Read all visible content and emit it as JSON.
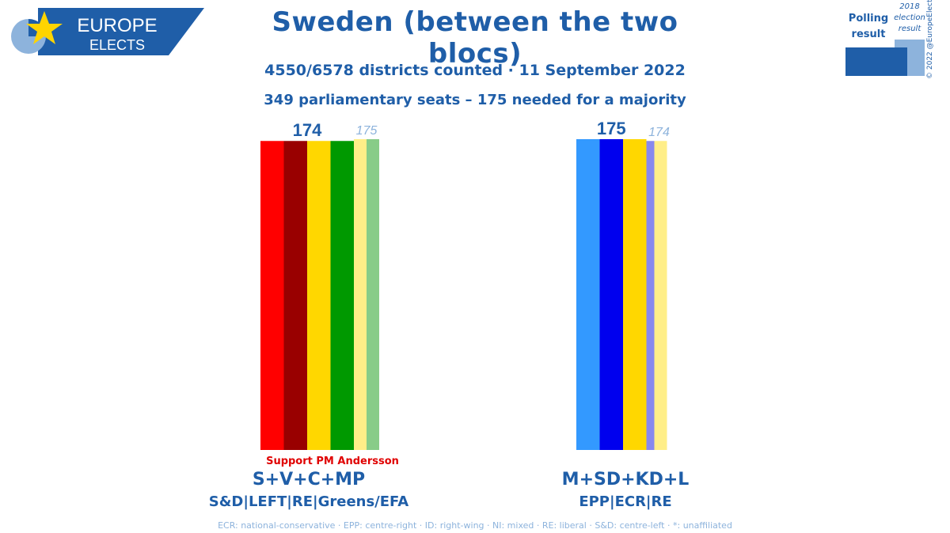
{
  "logo": {
    "line1": "EUROPE",
    "line2": "ELECTS"
  },
  "title": "Sweden (between the two blocs)",
  "subtitle1": "4550/6578 districts counted · 11 September 2022",
  "subtitle2": "349 parliamentary seats – 175 needed for a majority",
  "legend": {
    "polling_label": "Polling result",
    "election_label": "2018 election result",
    "polling_color": "#1f5ea8",
    "election_color": "#8db3dc"
  },
  "copyright": "© 2022 @EuropeElects",
  "support_note": "Support PM Andersson",
  "footnote": "ECR: national-conservative · EPP: centre-right · ID: right-wing · NI: mixed · RE: liberal · S&D: centre-left · *: unaffiliated",
  "chart_data": {
    "type": "bar",
    "ylim": [
      0,
      175
    ],
    "blocs": [
      {
        "name": "S+V+C+MP",
        "groups": "S&D|LEFT|RE|Greens/EFA",
        "polling_seats": 174,
        "election_2018_seats": 175,
        "polling_parties": [
          {
            "party": "S",
            "color": "#ff0000"
          },
          {
            "party": "V",
            "color": "#990000"
          },
          {
            "party": "C",
            "color": "#ffd700"
          },
          {
            "party": "MP",
            "color": "#009900"
          }
        ],
        "election_parties": [
          {
            "party": "C",
            "color": "#ffee88"
          },
          {
            "party": "MP",
            "color": "#88cc88"
          }
        ]
      },
      {
        "name": "M+SD+KD+L",
        "groups": "EPP|ECR|RE",
        "polling_seats": 175,
        "election_2018_seats": 174,
        "polling_parties": [
          {
            "party": "M",
            "color": "#3399ff"
          },
          {
            "party": "SD",
            "color": "#0000ee"
          },
          {
            "party": "KD",
            "color": "#ffd700"
          }
        ],
        "election_parties": [
          {
            "party": "SD",
            "color": "#8888ee"
          },
          {
            "party": "L",
            "color": "#ffee88"
          }
        ]
      }
    ]
  }
}
